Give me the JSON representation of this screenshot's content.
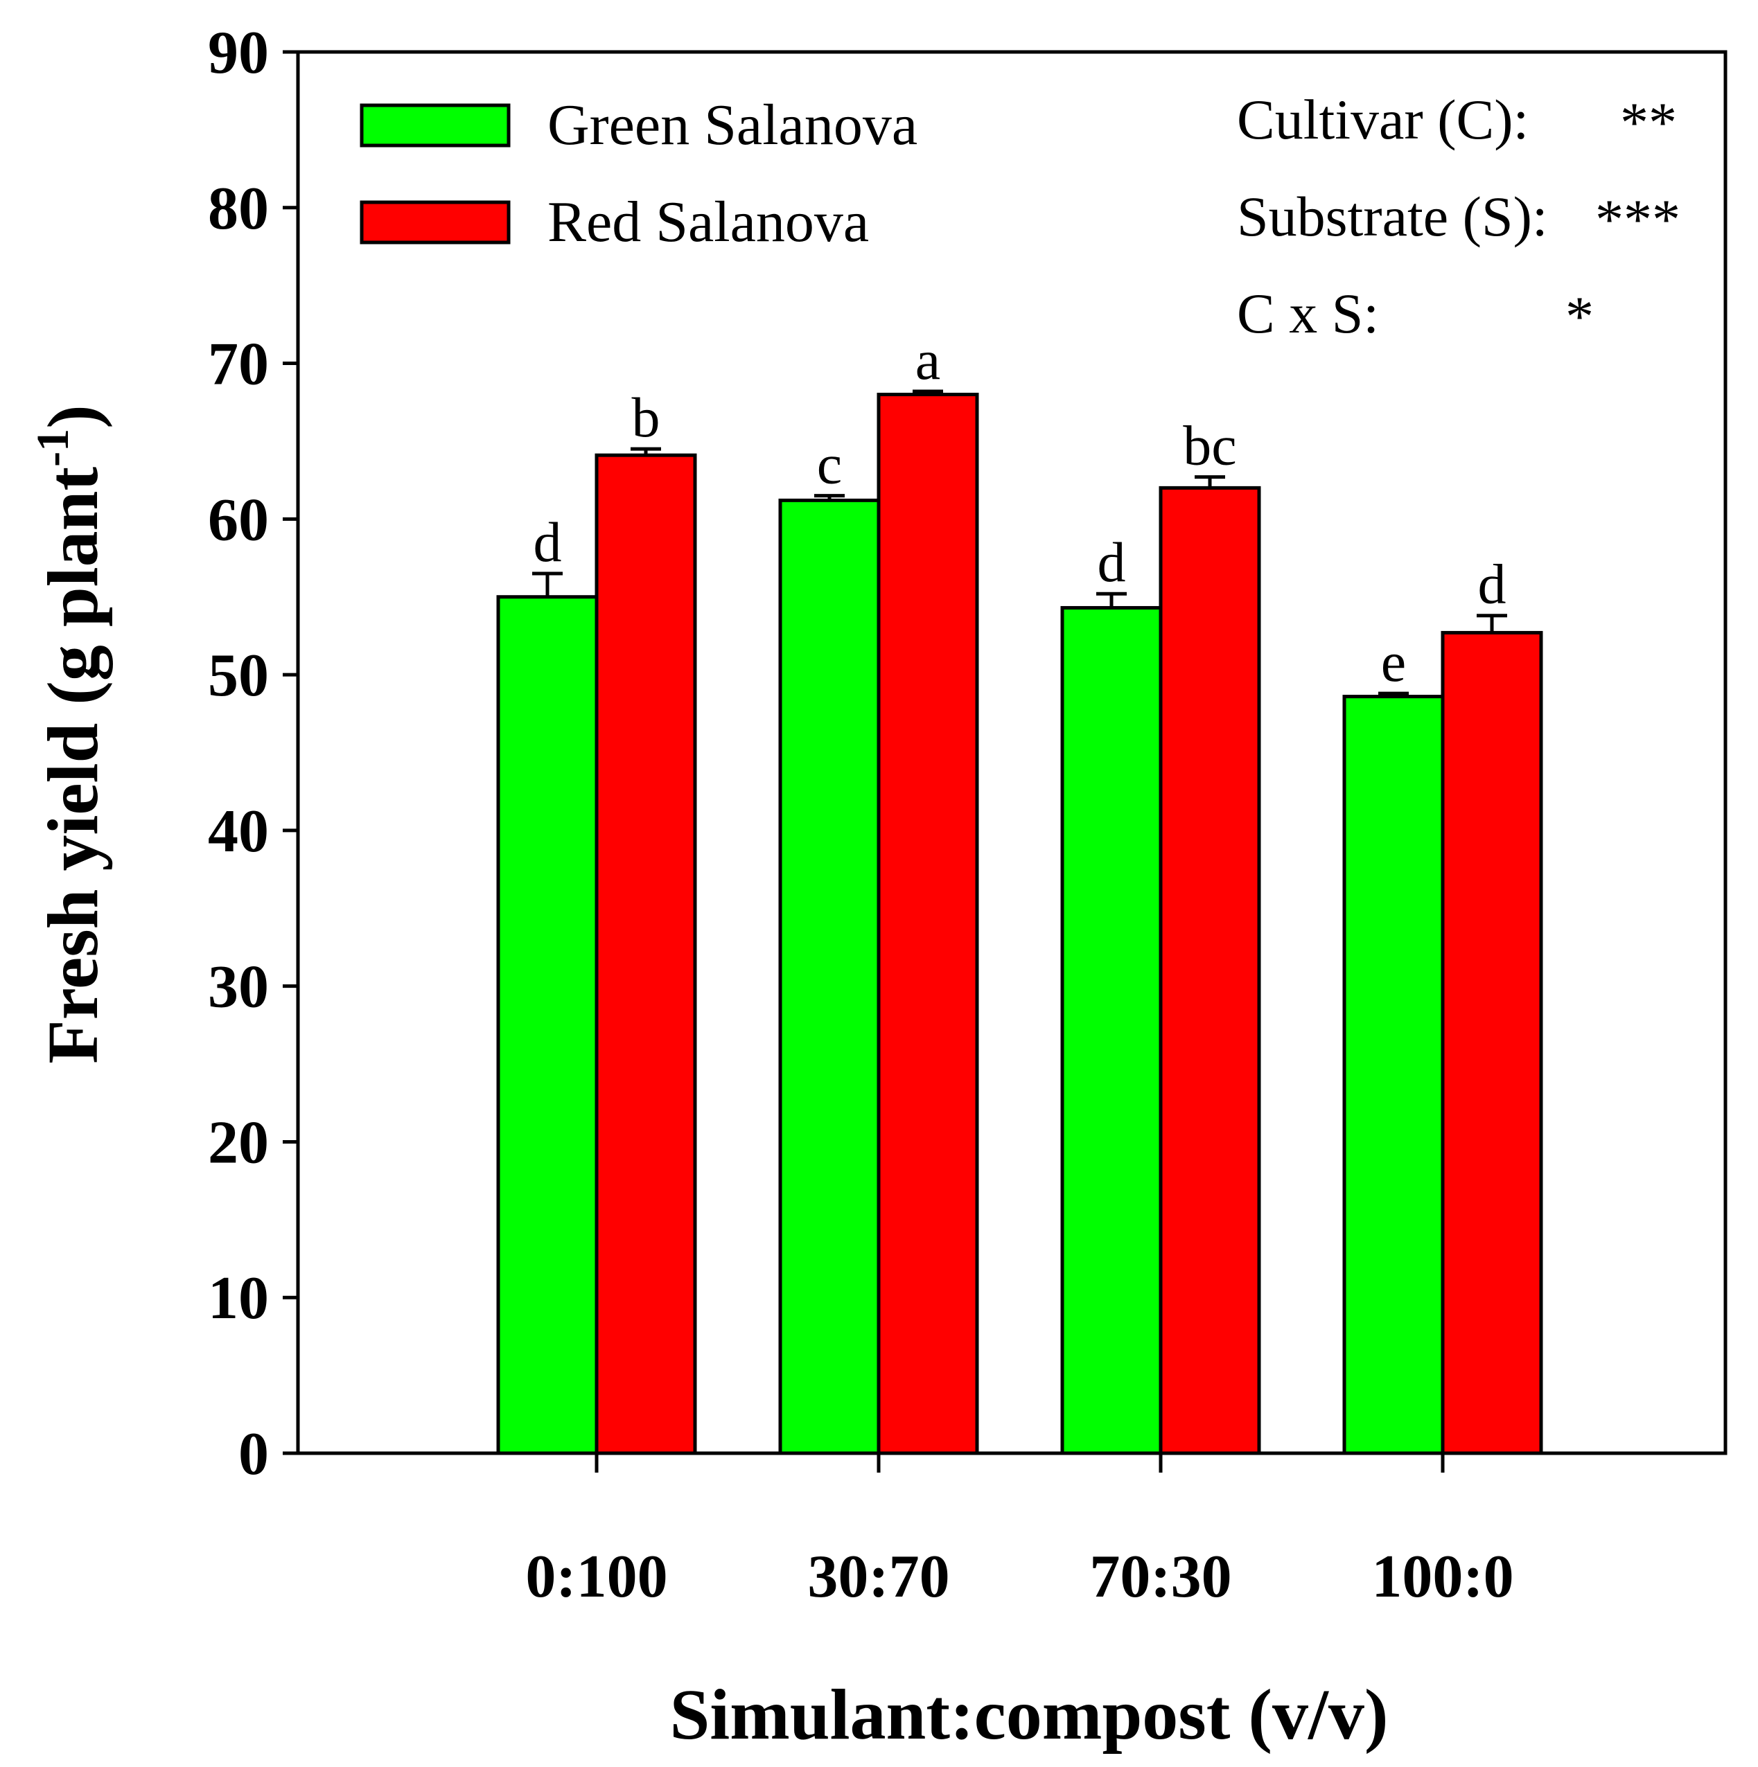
{
  "chart_data": {
    "type": "bar",
    "title": "",
    "xlabel": "Simulant:compost (v/v)",
    "ylabel_main": "Fresh yield (g plant",
    "ylabel_sup": "-1",
    "ylabel_close": ")",
    "ylim": [
      0,
      90
    ],
    "yticks": [
      0,
      10,
      20,
      30,
      40,
      50,
      60,
      70,
      80,
      90
    ],
    "ytick_labels": [
      "0",
      "10",
      "20",
      "30",
      "40",
      "50",
      "60",
      "70",
      "80",
      "90"
    ],
    "categories": [
      "0:100",
      "30:70",
      "70:30",
      "100:0"
    ],
    "series": [
      {
        "name": "Green Salanova",
        "color": "#00ff00",
        "values": [
          55.0,
          61.2,
          54.3,
          48.6
        ],
        "errors": [
          1.5,
          0.3,
          0.9,
          0.2
        ],
        "letters": [
          "d",
          "c",
          "d",
          "e"
        ]
      },
      {
        "name": "Red Salanova",
        "color": "#ff0000",
        "values": [
          64.1,
          68.0,
          62.0,
          52.7
        ],
        "errors": [
          0.4,
          0.2,
          0.7,
          1.1
        ],
        "letters": [
          "b",
          "a",
          "bc",
          "d"
        ]
      }
    ],
    "legend_position": "top-left",
    "stats": [
      {
        "label": "Cultivar (C):",
        "sig": "**"
      },
      {
        "label": "Substrate (S):",
        "sig": "***"
      },
      {
        "label": "C x S:",
        "sig": "*"
      }
    ],
    "grid": false
  }
}
